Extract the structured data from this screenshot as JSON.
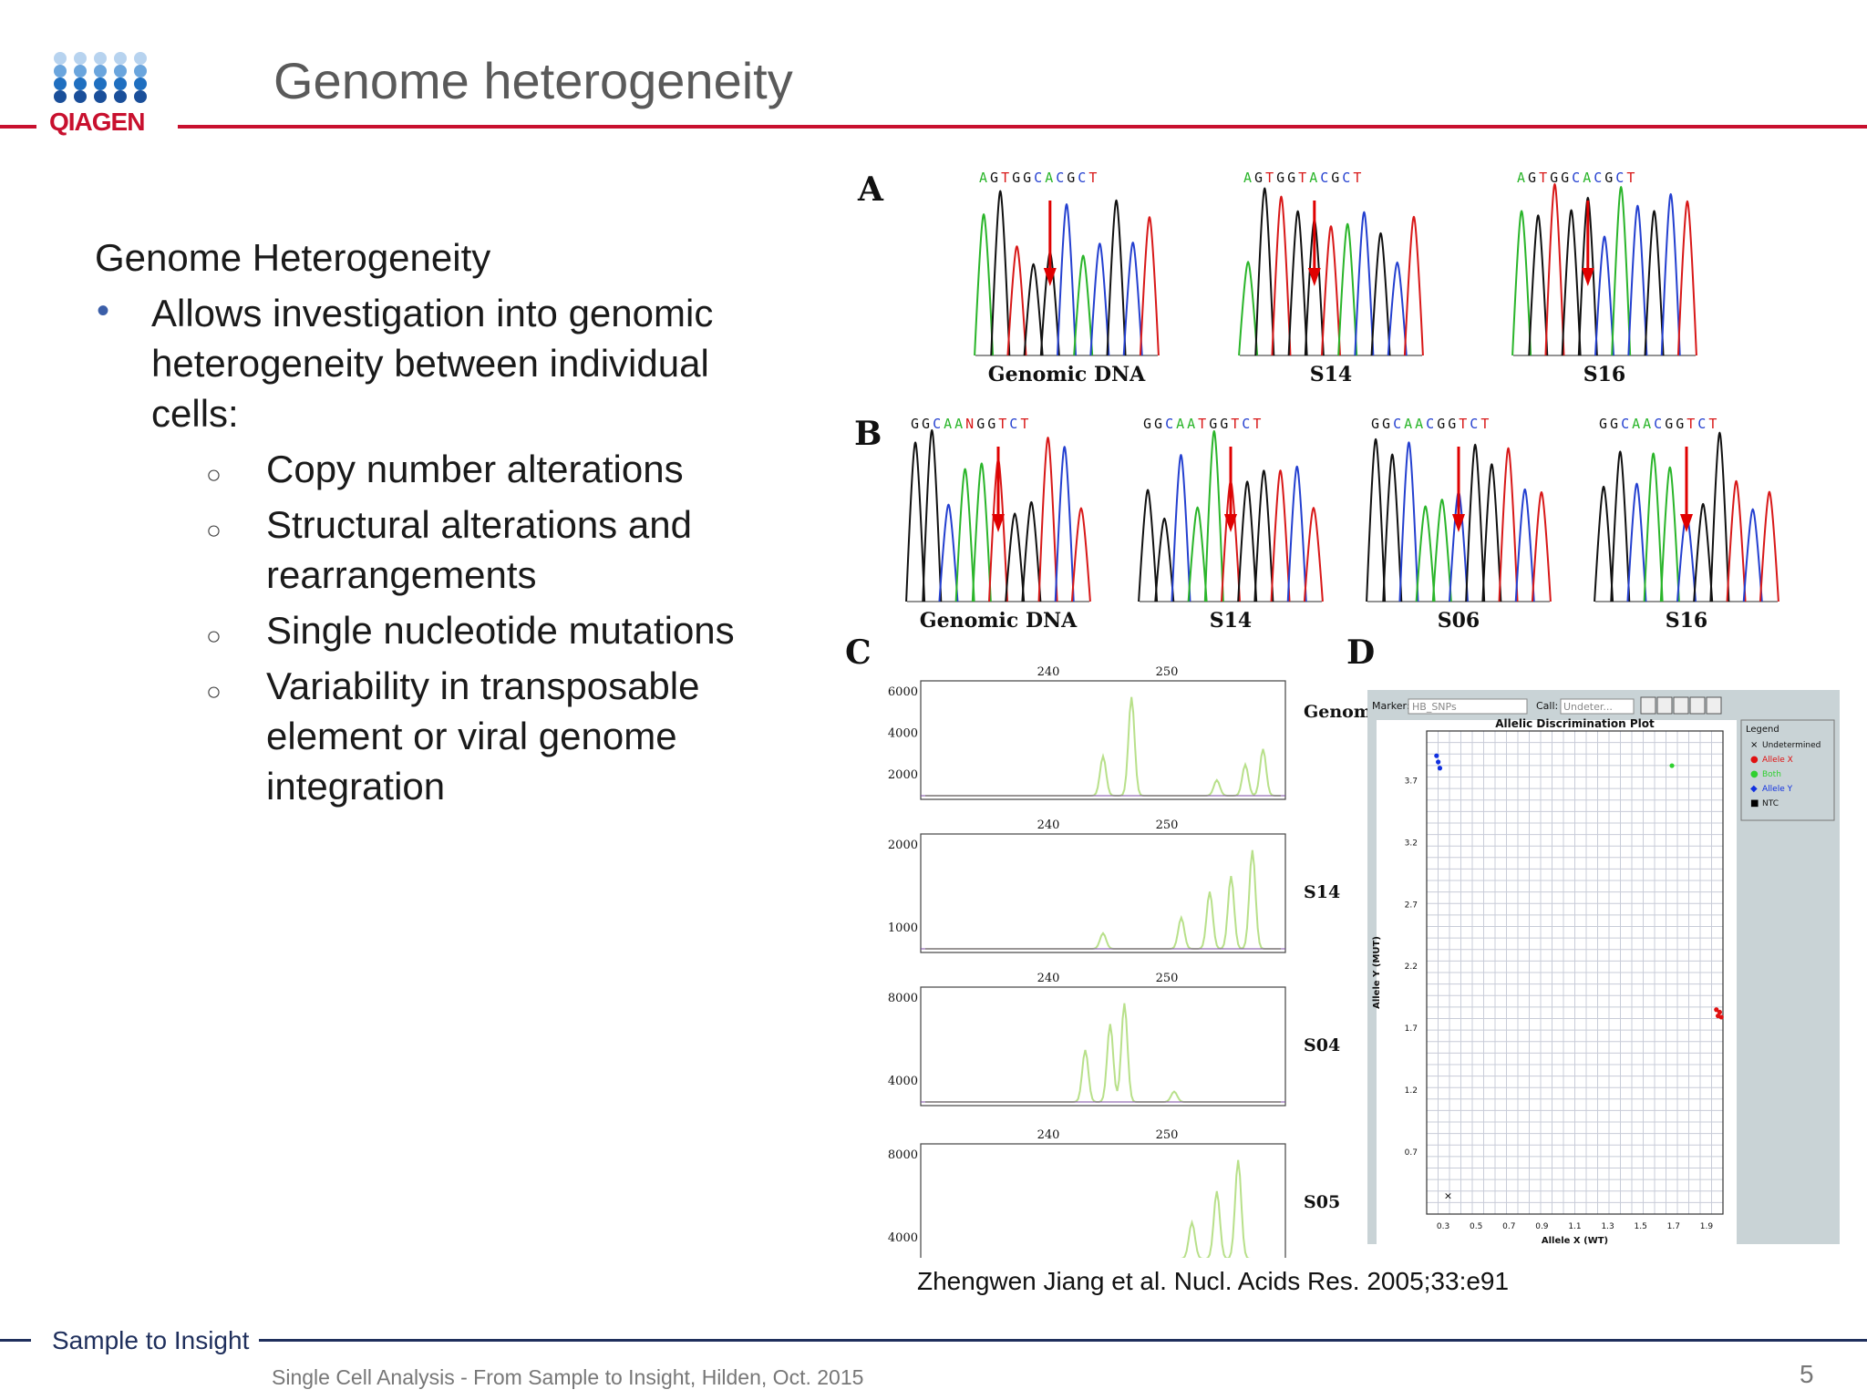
{
  "logo": {
    "text": "QIAGEN"
  },
  "title": "Genome heterogeneity",
  "content": {
    "heading": "Genome Heterogeneity",
    "bullet": "Allows investigation  into genomic heterogeneity  between individual cells:",
    "sub_items": [
      "Copy number  alterations",
      "Structural alterations and rearrangements",
      "Single  nucleotide  mutations",
      "Variability in transposable element  or viral genome integration"
    ]
  },
  "figure": {
    "panel_a": {
      "label": "A",
      "traces": [
        {
          "sequence": "AGTGGCACGCT",
          "caption": "Genomic DNA"
        },
        {
          "sequence": "AGTGGTACGCT",
          "caption": "S14"
        },
        {
          "sequence": "AGTGGCACGCT",
          "caption": "S16"
        }
      ]
    },
    "panel_b": {
      "label": "B",
      "traces": [
        {
          "sequence": "GGCAANGGTCT",
          "caption": "Genomic DNA"
        },
        {
          "sequence": "GGCAATGGTCT",
          "caption": "S14"
        },
        {
          "sequence": "GGCAACGGTCT",
          "caption": "S06"
        },
        {
          "sequence": "GGCAACGGTCT",
          "caption": "S16"
        }
      ]
    },
    "panel_c": {
      "label": "C",
      "plots": [
        {
          "name": "Genomic DNA",
          "ticks_x": [
            "240",
            "250"
          ],
          "ticks_y": [
            "6000",
            "4000",
            "2000"
          ]
        },
        {
          "name": "S14",
          "ticks_x": [
            "240",
            "250"
          ],
          "ticks_y": [
            "2000",
            "1000"
          ]
        },
        {
          "name": "S04",
          "ticks_x": [
            "240",
            "250"
          ],
          "ticks_y": [
            "8000",
            "4000"
          ]
        },
        {
          "name": "S05",
          "ticks_x": [
            "240",
            "250"
          ],
          "ticks_y": [
            "8000",
            "4000"
          ]
        }
      ]
    },
    "panel_d": {
      "label": "D",
      "toolbar": {
        "marker_label": "Marker:",
        "marker_value": "HB_SNPs",
        "call_label": "Call:",
        "call_value": "Undeter..."
      },
      "plot_title": "Allelic Discrimination Plot",
      "x_label": "Allele X (WT)",
      "y_label": "Allele Y (MUT)",
      "x_ticks": [
        "0.3",
        "0.5",
        "0.7",
        "0.9",
        "1.1",
        "1.3",
        "1.5",
        "1.7",
        "1.9"
      ],
      "y_ticks": [
        "3.7",
        "3.2",
        "2.7",
        "2.2",
        "1.7",
        "1.2",
        "0.7"
      ],
      "legend": {
        "title": "Legend",
        "items": [
          {
            "symbol": "×",
            "label": "Undetermined",
            "color": "#000000"
          },
          {
            "symbol": "●",
            "label": "Allele X",
            "color": "#e01010"
          },
          {
            "symbol": "●",
            "label": "Both",
            "color": "#30d030"
          },
          {
            "symbol": "◆",
            "label": "Allele Y",
            "color": "#1030e0"
          },
          {
            "symbol": "■",
            "label": "NTC",
            "color": "#000000"
          }
        ]
      },
      "chart_data": {
        "type": "scatter",
        "title": "Allelic Discrimination Plot",
        "xlabel": "Allele X (WT)",
        "ylabel": "Allele Y (MUT)",
        "series": [
          {
            "name": "Allele Y",
            "x": [
              0.26,
              0.27,
              0.28
            ],
            "y": [
              3.9,
              3.85,
              3.8
            ],
            "color": "#1030e0"
          },
          {
            "name": "Both",
            "x": [
              1.69
            ],
            "y": [
              3.82
            ],
            "color": "#30d030"
          },
          {
            "name": "Allele X",
            "x": [
              1.96,
              1.97,
              1.98,
              1.99
            ],
            "y": [
              1.85,
              1.8,
              1.83,
              1.79
            ],
            "color": "#e01010"
          },
          {
            "name": "Undetermined",
            "x": [
              0.33
            ],
            "y": [
              0.35
            ],
            "color": "#000000"
          }
        ]
      }
    }
  },
  "citation": "Zhengwen Jiang et al. Nucl. Acids Res. 2005;33:e91",
  "slogan": "Sample to Insight",
  "footer": "Single Cell Analysis - From Sample to Insight, Hilden, Oct. 2015",
  "page_number": "5",
  "colors": {
    "brand_red": "#c8102e",
    "navy": "#1f2f5c",
    "title_grey": "#5a5a5a"
  }
}
